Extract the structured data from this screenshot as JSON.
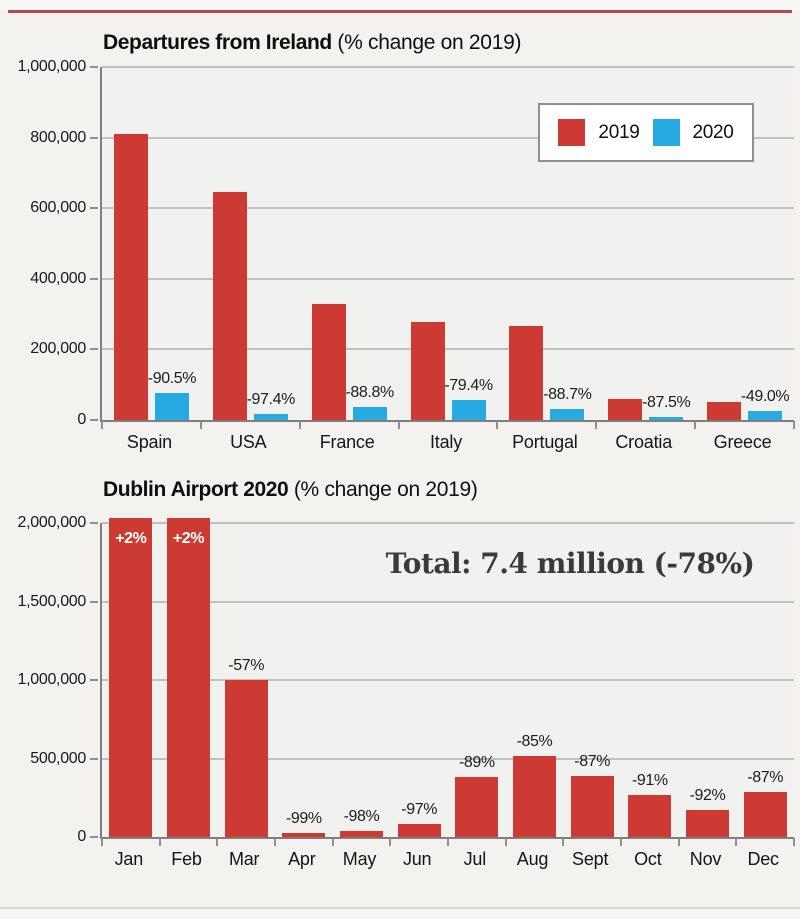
{
  "page": {
    "background": "#f3f2ef",
    "accent_rule_color": "#b4494e"
  },
  "chart_data": [
    {
      "type": "bar",
      "title": "Departures from Ireland",
      "subtitle": " (% change on 2019)",
      "categories": [
        "Spain",
        "USA",
        "France",
        "Italy",
        "Portugal",
        "Croatia",
        "Greece"
      ],
      "series": [
        {
          "name": "2019",
          "color": "#cc3a33",
          "values": [
            810000,
            645000,
            330000,
            278000,
            265000,
            60000,
            50000
          ]
        },
        {
          "name": "2020",
          "color": "#27aae1",
          "values": [
            77000,
            17000,
            37000,
            57000,
            30000,
            7500,
            25500
          ]
        }
      ],
      "bar_labels": [
        "-90.5%",
        "-97.4%",
        "-88.8%",
        "-79.4%",
        "-88.7%",
        "-87.5%",
        "-49.0%"
      ],
      "ylim": [
        0,
        1000000
      ],
      "y_ticks": [
        {
          "value": 0,
          "label": "0"
        },
        {
          "value": 200000,
          "label": "200,000"
        },
        {
          "value": 400000,
          "label": "400,000"
        },
        {
          "value": 600000,
          "label": "600,000"
        },
        {
          "value": 800000,
          "label": "800,000"
        },
        {
          "value": 1000000,
          "label": "1,000,000"
        }
      ],
      "grid": true,
      "legend_position": "top-right"
    },
    {
      "type": "bar",
      "title": "Dublin Airport 2020",
      "subtitle": " (% change on 2019)",
      "annotation": "Total: 7.4 million (-78%)",
      "categories": [
        "Jan",
        "Feb",
        "Mar",
        "Apr",
        "May",
        "Jun",
        "Jul",
        "Aug",
        "Sept",
        "Oct",
        "Nov",
        "Dec"
      ],
      "series": [
        {
          "name": "2020",
          "color": "#cc3a33",
          "values": [
            2000000,
            2000000,
            1000000,
            25000,
            40000,
            85000,
            380000,
            515000,
            390000,
            265000,
            170000,
            285000
          ]
        }
      ],
      "clipped_at_top": [
        true,
        true,
        false,
        false,
        false,
        false,
        false,
        false,
        false,
        false,
        false,
        false
      ],
      "bar_labels": [
        "+2%",
        "+2%",
        "-57%",
        "-99%",
        "-98%",
        "-97%",
        "-89%",
        "-85%",
        "-87%",
        "-91%",
        "-92%",
        "-87%"
      ],
      "ylim": [
        0,
        2000000
      ],
      "y_ticks": [
        {
          "value": 0,
          "label": "0"
        },
        {
          "value": 500000,
          "label": "500,000"
        },
        {
          "value": 1000000,
          "label": "1,000,000"
        },
        {
          "value": 1500000,
          "label": "1,500,000"
        },
        {
          "value": 2000000,
          "label": "2,000,000"
        }
      ],
      "grid": true,
      "legend_position": "none"
    }
  ]
}
